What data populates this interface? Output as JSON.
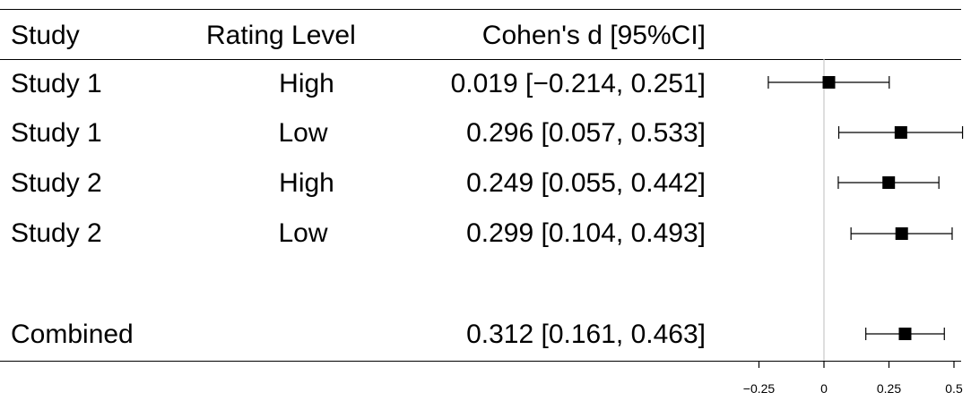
{
  "chart_data": {
    "type": "forest",
    "columns": {
      "study": "Study",
      "rating": "Rating Level",
      "effect": "Cohen's d [95%CI]"
    },
    "rows": [
      {
        "study": "Study 1",
        "rating": "High",
        "d": 0.019,
        "lo": -0.214,
        "hi": 0.251,
        "effect_text": "0.019 [−0.214, 0.251]"
      },
      {
        "study": "Study 1",
        "rating": "Low",
        "d": 0.296,
        "lo": 0.057,
        "hi": 0.533,
        "effect_text": "0.296 [0.057, 0.533]"
      },
      {
        "study": "Study 2",
        "rating": "High",
        "d": 0.249,
        "lo": 0.055,
        "hi": 0.442,
        "effect_text": "0.249 [0.055, 0.442]"
      },
      {
        "study": "Study 2",
        "rating": "Low",
        "d": 0.299,
        "lo": 0.104,
        "hi": 0.493,
        "effect_text": "0.299 [0.104, 0.493]"
      }
    ],
    "combined": {
      "study": "Combined",
      "d": 0.312,
      "lo": 0.161,
      "hi": 0.463,
      "effect_text": "0.312 [0.161, 0.463]"
    },
    "x_ticks": [
      {
        "value": -0.25,
        "label": "−0.25"
      },
      {
        "value": 0,
        "label": "0"
      },
      {
        "value": 0.25,
        "label": "0.25"
      },
      {
        "value": 0.5,
        "label": "0.5"
      }
    ],
    "reference_line": 0
  }
}
